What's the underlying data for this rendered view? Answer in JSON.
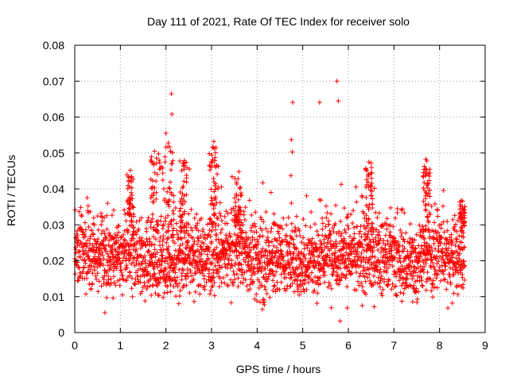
{
  "chart_data": {
    "type": "scatter",
    "title": "Day 111 of 2021, Rate Of TEC Index for receiver solo",
    "xlabel": "GPS time / hours",
    "ylabel": "ROTI / TECUs",
    "xlim": [
      0,
      9
    ],
    "ylim": [
      0,
      0.08
    ],
    "grid": true,
    "marker": "plus",
    "color": "#ff0000",
    "xticks": [
      "0",
      "1",
      "2",
      "3",
      "4",
      "5",
      "6",
      "7",
      "8",
      "9"
    ],
    "yticks": [
      "0",
      "0.01",
      "0.02",
      "0.03",
      "0.04",
      "0.05",
      "0.06",
      "0.07",
      "0.08"
    ],
    "points": {
      "x_start": 0.0,
      "x_end": 8.55,
      "count": 2600,
      "typical_range": [
        0.007,
        0.035
      ],
      "typical_center": 0.019
    },
    "outliers": [
      {
        "x": 2.12,
        "y": 0.0665
      },
      {
        "x": 2.13,
        "y": 0.0608
      },
      {
        "x": 2.0,
        "y": 0.0555
      },
      {
        "x": 2.05,
        "y": 0.0528
      },
      {
        "x": 1.75,
        "y": 0.0505
      },
      {
        "x": 3.05,
        "y": 0.0532
      },
      {
        "x": 3.1,
        "y": 0.0515
      },
      {
        "x": 2.95,
        "y": 0.0498
      },
      {
        "x": 4.78,
        "y": 0.0641
      },
      {
        "x": 4.75,
        "y": 0.0537
      },
      {
        "x": 4.77,
        "y": 0.0503
      },
      {
        "x": 4.74,
        "y": 0.0437
      },
      {
        "x": 5.37,
        "y": 0.0641
      },
      {
        "x": 5.75,
        "y": 0.07
      },
      {
        "x": 5.78,
        "y": 0.0645
      },
      {
        "x": 6.45,
        "y": 0.0475
      },
      {
        "x": 6.5,
        "y": 0.0472
      },
      {
        "x": 7.7,
        "y": 0.0483
      },
      {
        "x": 7.72,
        "y": 0.0478
      },
      {
        "x": 7.7,
        "y": 0.0455
      },
      {
        "x": 3.6,
        "y": 0.0448
      },
      {
        "x": 1.22,
        "y": 0.0452
      },
      {
        "x": 2.4,
        "y": 0.0472
      },
      {
        "x": 5.82,
        "y": 0.0032
      }
    ]
  }
}
